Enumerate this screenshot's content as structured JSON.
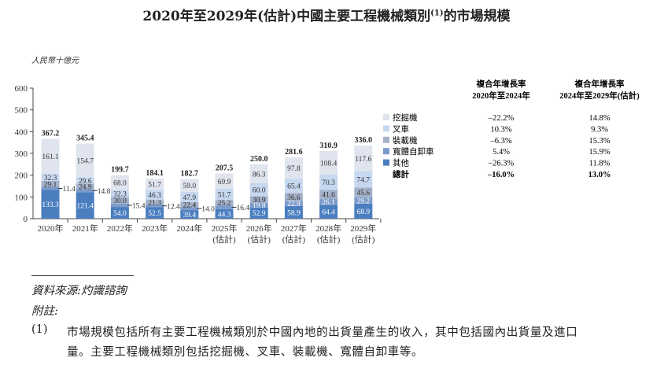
{
  "title": {
    "text": "2020年至2029年(估計)中國主要工程機械類別",
    "sup": "(1)",
    "suffix": "的市場規模"
  },
  "chart_data": {
    "type": "bar",
    "stacked": true,
    "ylabel": "人民幣十億元",
    "ylim": [
      0,
      600
    ],
    "yticks": [
      0,
      100,
      200,
      300,
      400,
      500,
      600
    ],
    "categories": [
      "2020年",
      "2021年",
      "2022年",
      "2023年",
      "2024年",
      "2025年",
      "2026年",
      "2027年",
      "2028年",
      "2029年"
    ],
    "category_sub": [
      "",
      "",
      "",
      "",
      "",
      "(估計)",
      "(估計)",
      "(估計)",
      "(估計)",
      "(估計)"
    ],
    "series": [
      {
        "name": "其他",
        "color": "#4a7ebf",
        "values": [
          133.3,
          121.4,
          54.0,
          52.5,
          39.4,
          44.3,
          52.9,
          58.9,
          64.4,
          68.9
        ]
      },
      {
        "name": "寬體自卸車",
        "color": "#7d9ccb",
        "values": [
          11.4,
          14.8,
          15.4,
          12.4,
          14.0,
          16.4,
          19.8,
          22.9,
          26.1,
          29.2
        ]
      },
      {
        "name": "裝載機",
        "color": "#a4b2c9",
        "values": [
          29.1,
          24.9,
          30.0,
          21.3,
          22.4,
          25.2,
          30.9,
          36.6,
          41.6,
          45.6
        ]
      },
      {
        "name": "叉車",
        "color": "#c6d8ef",
        "values": [
          32.3,
          29.6,
          32.3,
          46.3,
          47.9,
          51.7,
          60.0,
          65.4,
          70.3,
          74.7
        ]
      },
      {
        "name": "挖掘機",
        "color": "#dfe4ee",
        "values": [
          161.1,
          154.7,
          68.0,
          51.7,
          59.0,
          69.9,
          86.3,
          97.8,
          108.4,
          117.6
        ]
      }
    ],
    "totals": [
      367.2,
      345.4,
      199.7,
      184.1,
      182.7,
      207.5,
      250.0,
      281.6,
      310.9,
      336.0
    ]
  },
  "cagr_table": {
    "headers": [
      [
        "複合年增長率",
        "2020年至2024年"
      ],
      [
        "複合年增長率",
        "2024年至2029年(估計)"
      ]
    ],
    "rows": [
      {
        "label": "挖掘機",
        "color": "#dfe4ee",
        "c1": "–22.2%",
        "c2": "14.8%"
      },
      {
        "label": "叉車",
        "color": "#c6d8ef",
        "c1": "10.3%",
        "c2": "9.3%"
      },
      {
        "label": "裝載機",
        "color": "#a4b2c9",
        "c1": "–6.3%",
        "c2": "15.3%"
      },
      {
        "label": "寬體自卸車",
        "color": "#7d9ccb",
        "c1": "5.4%",
        "c2": "15.9%"
      },
      {
        "label": "其他",
        "color": "#4a7ebf",
        "c1": "–26.3%",
        "c2": "11.8%"
      },
      {
        "label": "總計",
        "color": "",
        "c1": "–16.0%",
        "c2": "13.0%",
        "bold": true
      }
    ]
  },
  "footer": {
    "source": "資料來源:灼識諮詢",
    "note_label": "附註:",
    "note_num": "(1)",
    "note_line1": "市場規模包括所有主要工程機械類別於中國內地的出貨量產生的收入，其中包括國內出貨量及進口",
    "note_line2": "量。主要工程機械類別包括挖掘機、叉車、裝載機、寬體自卸車等。"
  }
}
